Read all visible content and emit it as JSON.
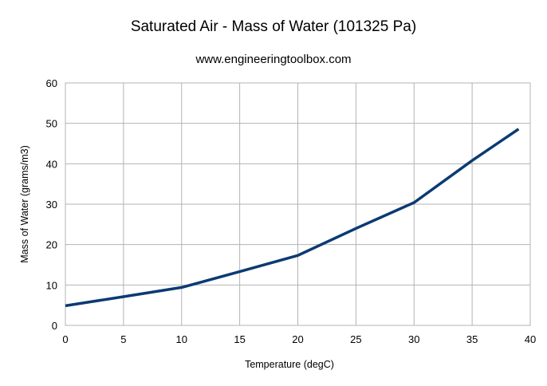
{
  "chart_data": {
    "type": "line",
    "title": "Saturated Air - Mass of Water (101325 Pa)",
    "subtitle": "www.engineeringtoolbox.com",
    "xlabel": "Temperature (degC)",
    "ylabel": "Mass of Water (grams/m3)",
    "xlim": [
      0,
      40
    ],
    "ylim": [
      0,
      60
    ],
    "xticks": [
      0,
      5,
      10,
      15,
      20,
      25,
      30,
      35,
      40
    ],
    "yticks": [
      0,
      10,
      20,
      30,
      40,
      50,
      60
    ],
    "grid": true,
    "legend": "none",
    "series": [
      {
        "color": "#0b3a73",
        "x": [
          0,
          5,
          10,
          15,
          20,
          25,
          30,
          35,
          39
        ],
        "y": [
          4.85,
          7.1,
          9.4,
          13.3,
          17.3,
          24.0,
          30.4,
          40.8,
          48.6
        ]
      }
    ]
  }
}
